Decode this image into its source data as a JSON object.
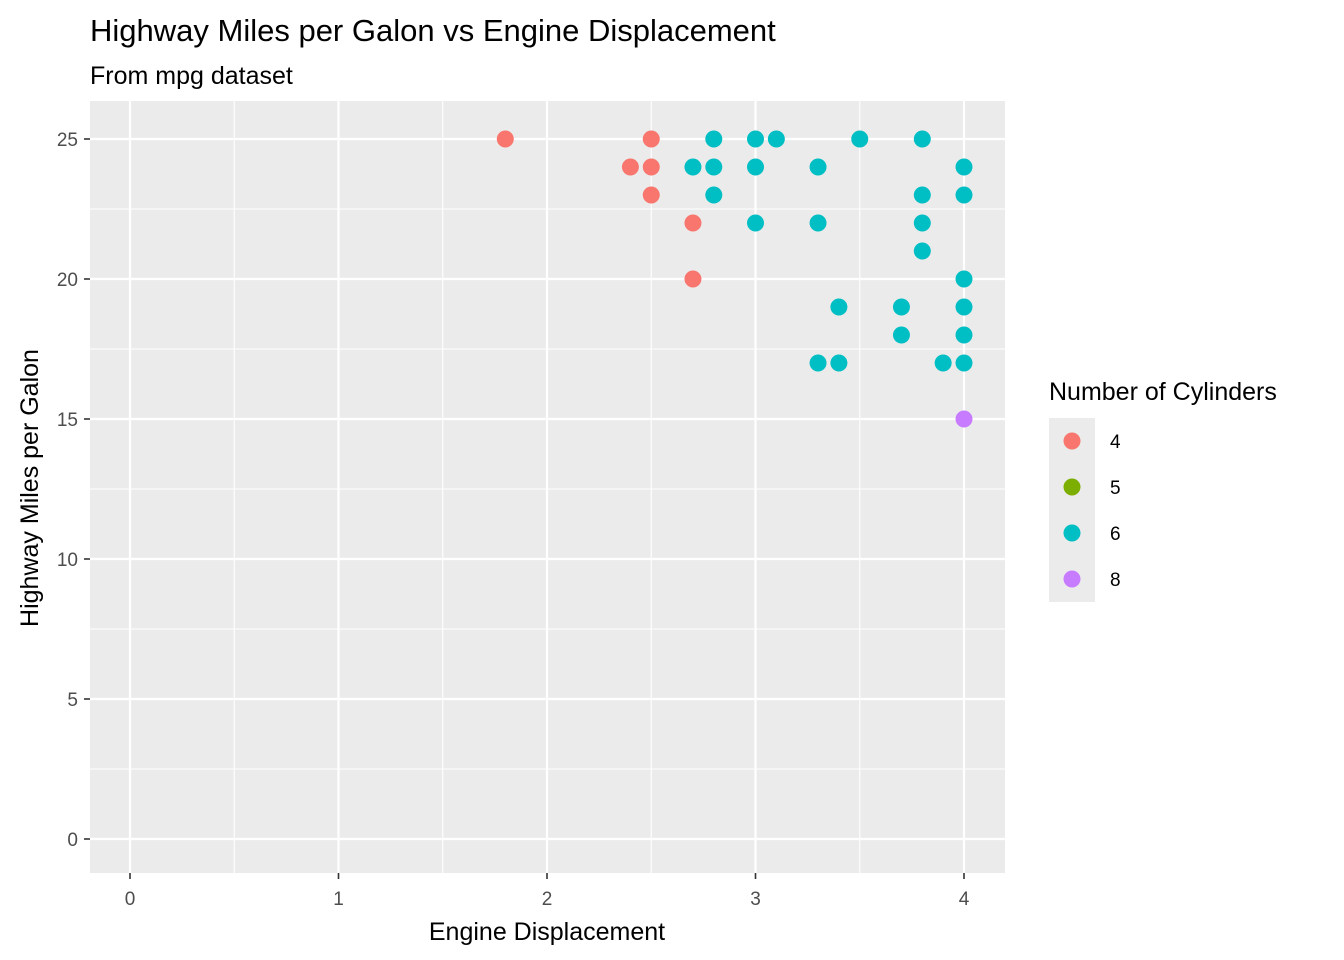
{
  "chart_data": {
    "type": "scatter",
    "title": "Highway Miles per Galon vs Engine Displacement",
    "subtitle": "From mpg dataset",
    "xlabel": "Engine Displacement",
    "ylabel": "Highway Miles per Galon",
    "xlim": [
      0,
      4
    ],
    "ylim": [
      0,
      25
    ],
    "x_ticks": [
      0,
      1,
      2,
      3,
      4
    ],
    "y_ticks": [
      0,
      5,
      10,
      15,
      20,
      25
    ],
    "x_tick_labels": [
      "0",
      "1",
      "2",
      "3",
      "4"
    ],
    "y_tick_labels": [
      "0",
      "5",
      "10",
      "15",
      "20",
      "25"
    ],
    "grid": true,
    "legend": {
      "title": "Number of Cylinders",
      "placement": "right",
      "entries": [
        {
          "label": "4",
          "color": "#F8766D"
        },
        {
          "label": "5",
          "color": "#7CAE00"
        },
        {
          "label": "6",
          "color": "#00BFC4"
        },
        {
          "label": "8",
          "color": "#C77CFF"
        }
      ]
    },
    "series": [
      {
        "name": "4",
        "color": "#F8766D",
        "x": [
          1.8,
          2.4,
          2.5,
          2.5,
          2.5,
          2.7,
          2.7
        ],
        "y": [
          25,
          24,
          25,
          24,
          23,
          22,
          20
        ]
      },
      {
        "name": "5",
        "color": "#7CAE00",
        "x": [],
        "y": []
      },
      {
        "name": "6",
        "color": "#00BFC4",
        "x": [
          2.7,
          2.8,
          2.8,
          2.8,
          3.0,
          3.0,
          3.0,
          3.1,
          3.3,
          3.3,
          3.3,
          3.4,
          3.4,
          3.5,
          3.7,
          3.7,
          3.8,
          3.8,
          3.8,
          3.8,
          3.9,
          4.0,
          4.0,
          4.0,
          4.0,
          4.0,
          4.0
        ],
        "y": [
          24,
          25,
          24,
          23,
          25,
          24,
          22,
          25,
          24,
          22,
          17,
          19,
          17,
          25,
          19,
          18,
          25,
          23,
          22,
          21,
          17,
          24,
          23,
          20,
          19,
          18,
          17
        ]
      },
      {
        "name": "8",
        "color": "#C77CFF",
        "x": [
          4.0
        ],
        "y": [
          15
        ]
      }
    ]
  }
}
